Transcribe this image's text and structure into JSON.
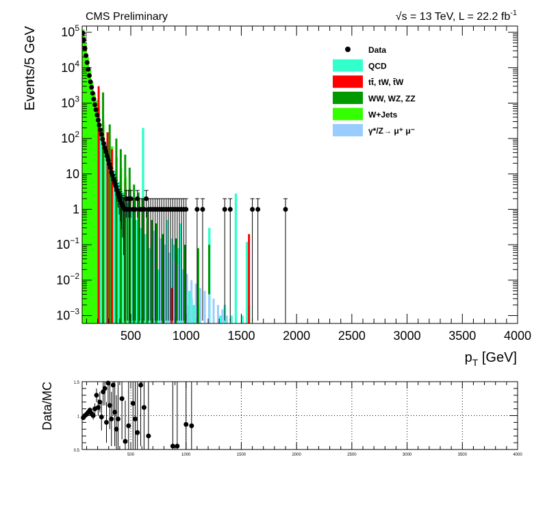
{
  "header": {
    "left": "CMS Preliminary",
    "right": "√s = 13 TeV, L = 22.2 fb",
    "right_sup": "-1"
  },
  "colors": {
    "qcd": "#33ffcc",
    "ttbar": "#ff0000",
    "diboson": "#009900",
    "wjets": "#33ff00",
    "dy": "#99ccff",
    "data": "#000000"
  },
  "chart_data": [
    {
      "type": "bar",
      "role": "main",
      "ylabel": "Events/5 GeV",
      "xlabel": "p",
      "xlabel_sub": "T",
      "xlabel_unit": " [GeV]",
      "xlim": [
        60,
        4000
      ],
      "ylim": [
        0.0006,
        150000
      ],
      "yscale": "log",
      "x_ticks": [
        "500",
        "1000",
        "1500",
        "2000",
        "2500",
        "3000",
        "3500",
        "4000"
      ],
      "y_ticks": [
        {
          "base": "10",
          "exp": "5",
          "v": 100000
        },
        {
          "base": "10",
          "exp": "4",
          "v": 10000
        },
        {
          "base": "10",
          "exp": "3",
          "v": 1000
        },
        {
          "base": "10",
          "exp": "2",
          "v": 100
        },
        {
          "base": "10",
          "exp": "",
          "v": 10
        },
        {
          "base": "1",
          "exp": "",
          "v": 1
        },
        {
          "base": "10",
          "exp": "−1",
          "v": 0.1
        },
        {
          "base": "10",
          "exp": "−2",
          "v": 0.01
        },
        {
          "base": "10",
          "exp": "−3",
          "v": 0.001
        }
      ],
      "legend": [
        {
          "key": "data",
          "label": "Data",
          "kind": "marker"
        },
        {
          "key": "qcd",
          "label": "QCD",
          "kind": "box"
        },
        {
          "key": "ttbar",
          "label": "tt̄, tW, t̄W",
          "kind": "box"
        },
        {
          "key": "diboson",
          "label": "WW, WZ, ZZ",
          "kind": "box"
        },
        {
          "key": "wjets",
          "label": "W+Jets",
          "kind": "box"
        },
        {
          "key": "dy",
          "label": "γ*/Z→ μ⁺ μ⁻",
          "kind": "box"
        }
      ],
      "legend_position": "top-right",
      "series": [
        {
          "key": "qcd",
          "points": [
            [
              60,
              80000
            ],
            [
              80,
              30000
            ],
            [
              100,
              12000
            ],
            [
              120,
              5000
            ],
            [
              140,
              2200
            ],
            [
              160,
              1000
            ],
            [
              180,
              500
            ],
            [
              200,
              250
            ],
            [
              220,
              130
            ],
            [
              240,
              80
            ],
            [
              260,
              70
            ],
            [
              280,
              40
            ],
            [
              300,
              25
            ],
            [
              320,
              15
            ],
            [
              340,
              12
            ],
            [
              360,
              9
            ],
            [
              380,
              6
            ],
            [
              400,
              4
            ],
            [
              420,
              3
            ],
            [
              440,
              2
            ],
            [
              460,
              1.5
            ],
            [
              480,
              1.2
            ],
            [
              500,
              0.9
            ],
            [
              520,
              0.7
            ],
            [
              540,
              0.5
            ],
            [
              560,
              0.4
            ],
            [
              580,
              0.3
            ],
            [
              600,
              200
            ],
            [
              620,
              0.2
            ],
            [
              640,
              0.1
            ],
            [
              660,
              0.08
            ],
            [
              680,
              0.06
            ],
            [
              700,
              0.04
            ],
            [
              720,
              0.03
            ],
            [
              740,
              0.02
            ],
            [
              760,
              0.012
            ],
            [
              780,
              0.008
            ],
            [
              800,
              0.006
            ],
            [
              820,
              0.5
            ],
            [
              840,
              0.004
            ],
            [
              860,
              0.15
            ],
            [
              880,
              0.1
            ],
            [
              900,
              0.004
            ],
            [
              920,
              0.08
            ],
            [
              940,
              0.4
            ],
            [
              960,
              0.003
            ],
            [
              980,
              0.06
            ],
            [
              1000,
              0.002
            ],
            [
              1020,
              0.005
            ],
            [
              1040,
              0.003
            ],
            [
              1060,
              0.002
            ],
            [
              1080,
              0.0015
            ],
            [
              1100,
              0.002
            ],
            [
              1200,
              0.3
            ],
            [
              1300,
              0.001
            ],
            [
              1340,
              0.002
            ],
            [
              1400,
              0.001
            ],
            [
              1440,
              2.8
            ],
            [
              1500,
              0.001
            ],
            [
              1540,
              0.12
            ],
            [
              1560,
              0.002
            ]
          ]
        },
        {
          "key": "ttbar",
          "points": [
            [
              200,
              3000
            ],
            [
              240,
              400
            ],
            [
              280,
              150
            ],
            [
              320,
              50
            ],
            [
              360,
              25
            ],
            [
              400,
              10
            ],
            [
              440,
              6
            ],
            [
              480,
              3
            ],
            [
              520,
              1.5
            ],
            [
              560,
              1
            ],
            [
              600,
              0.6
            ],
            [
              640,
              0.4
            ],
            [
              680,
              0.2
            ],
            [
              720,
              0.1
            ],
            [
              760,
              0.08
            ],
            [
              780,
              0.02
            ],
            [
              800,
              0.02
            ],
            [
              840,
              0.01
            ],
            [
              860,
              0.006
            ],
            [
              880,
              0.004
            ],
            [
              1000,
              0.002
            ],
            [
              1560,
              0.2
            ]
          ]
        },
        {
          "key": "diboson",
          "points": [
            [
              240,
              2000
            ],
            [
              300,
              250
            ],
            [
              360,
              100
            ],
            [
              400,
              50
            ],
            [
              440,
              35
            ],
            [
              480,
              15
            ],
            [
              520,
              5
            ],
            [
              560,
              3
            ],
            [
              600,
              2
            ],
            [
              640,
              1
            ],
            [
              680,
              0.5
            ],
            [
              720,
              0.4
            ],
            [
              780,
              0.2
            ],
            [
              900,
              0.15
            ],
            [
              980,
              0.1
            ],
            [
              1100,
              0.08
            ],
            [
              1200,
              0.1
            ]
          ]
        },
        {
          "key": "wjets",
          "points": [
            [
              60,
              120000
            ],
            [
              80,
              50000
            ],
            [
              100,
              20000
            ],
            [
              120,
              9000
            ],
            [
              140,
              4000
            ],
            [
              160,
              2000
            ],
            [
              180,
              1200
            ],
            [
              200,
              800
            ],
            [
              240,
              300
            ],
            [
              280,
              150
            ],
            [
              320,
              60
            ],
            [
              360,
              30
            ],
            [
              400,
              15
            ],
            [
              440,
              8
            ],
            [
              480,
              4
            ],
            [
              520,
              2
            ],
            [
              560,
              1
            ],
            [
              600,
              0.5
            ]
          ]
        },
        {
          "key": "dy",
          "points": [
            [
              700,
              0.25
            ],
            [
              760,
              0.15
            ],
            [
              800,
              0.1
            ],
            [
              840,
              0.06
            ],
            [
              880,
              0.04
            ],
            [
              920,
              0.03
            ],
            [
              960,
              0.02
            ],
            [
              1000,
              0.015
            ],
            [
              1040,
              0.01
            ],
            [
              1080,
              0.008
            ],
            [
              1120,
              0.006
            ],
            [
              1160,
              0.005
            ],
            [
              1200,
              0.004
            ],
            [
              1240,
              0.003
            ],
            [
              1280,
              0.002
            ],
            [
              1320,
              0.0015
            ],
            [
              1360,
              0.001
            ]
          ]
        }
      ],
      "data_points": [
        [
          65,
          95000
        ],
        [
          75,
          60000
        ],
        [
          85,
          35000
        ],
        [
          95,
          22000
        ],
        [
          105,
          14000
        ],
        [
          115,
          9000
        ],
        [
          125,
          6000
        ],
        [
          135,
          4000
        ],
        [
          145,
          2800
        ],
        [
          155,
          1900
        ],
        [
          165,
          1300
        ],
        [
          175,
          900
        ],
        [
          185,
          650
        ],
        [
          195,
          460
        ],
        [
          205,
          330
        ],
        [
          215,
          240
        ],
        [
          225,
          175
        ],
        [
          235,
          130
        ],
        [
          245,
          95
        ],
        [
          255,
          72
        ],
        [
          265,
          54
        ],
        [
          275,
          42
        ],
        [
          285,
          32
        ],
        [
          295,
          25
        ],
        [
          305,
          19
        ],
        [
          315,
          15
        ],
        [
          325,
          11
        ],
        [
          335,
          9
        ],
        [
          345,
          7
        ],
        [
          355,
          5.5
        ],
        [
          365,
          4.5
        ],
        [
          375,
          3.5
        ],
        [
          385,
          2.8
        ],
        [
          395,
          2.2
        ],
        [
          405,
          1.8
        ],
        [
          415,
          1.5
        ],
        [
          425,
          1.3
        ],
        [
          435,
          1.1
        ],
        [
          445,
          1
        ],
        [
          460,
          2
        ],
        [
          470,
          1
        ],
        [
          480,
          2
        ],
        [
          490,
          1
        ],
        [
          500,
          2
        ],
        [
          520,
          1
        ],
        [
          540,
          1
        ],
        [
          560,
          2
        ],
        [
          580,
          1
        ],
        [
          600,
          1
        ],
        [
          620,
          1
        ],
        [
          640,
          2
        ],
        [
          660,
          1
        ],
        [
          680,
          1
        ],
        [
          700,
          1
        ],
        [
          720,
          1
        ],
        [
          740,
          1
        ],
        [
          760,
          1
        ],
        [
          780,
          1
        ],
        [
          800,
          1
        ],
        [
          820,
          1
        ],
        [
          840,
          1
        ],
        [
          860,
          1
        ],
        [
          880,
          1
        ],
        [
          900,
          1
        ],
        [
          920,
          1
        ],
        [
          940,
          1
        ],
        [
          960,
          1
        ],
        [
          980,
          1
        ],
        [
          1000,
          1
        ],
        [
          1100,
          1
        ],
        [
          1150,
          1
        ],
        [
          1350,
          1
        ],
        [
          1400,
          1
        ],
        [
          1600,
          1
        ],
        [
          1650,
          1
        ],
        [
          1900,
          1
        ]
      ]
    },
    {
      "type": "scatter",
      "role": "ratio",
      "ylabel": "Data/MC",
      "xlim": [
        60,
        4000
      ],
      "ylim": [
        0.5,
        1.5
      ],
      "grid": true,
      "x_ticks": [
        "500",
        "1000",
        "1500",
        "2000",
        "2500",
        "3000",
        "3500",
        "4000"
      ],
      "y_ticks": [
        "1.5",
        "1",
        "0.5"
      ],
      "points": [
        {
          "x": 70,
          "y": 0.97,
          "e": 0.02
        },
        {
          "x": 85,
          "y": 1.0,
          "e": 0.02
        },
        {
          "x": 100,
          "y": 1.02,
          "e": 0.03
        },
        {
          "x": 115,
          "y": 1.05,
          "e": 0.03
        },
        {
          "x": 130,
          "y": 1.08,
          "e": 0.04
        },
        {
          "x": 145,
          "y": 1.03,
          "e": 0.05
        },
        {
          "x": 160,
          "y": 1.0,
          "e": 0.06
        },
        {
          "x": 175,
          "y": 1.1,
          "e": 0.08
        },
        {
          "x": 190,
          "y": 1.3,
          "e": 0.1
        },
        {
          "x": 205,
          "y": 1.12,
          "e": 0.12
        },
        {
          "x": 220,
          "y": 1.2,
          "e": 0.15
        },
        {
          "x": 235,
          "y": 0.98,
          "e": 0.2
        },
        {
          "x": 250,
          "y": 1.35,
          "e": 0.2
        },
        {
          "x": 265,
          "y": 1.4,
          "e": 0.25
        },
        {
          "x": 280,
          "y": 0.9,
          "e": 0.3
        },
        {
          "x": 295,
          "y": 1.48,
          "e": 0.3
        },
        {
          "x": 310,
          "y": 1.15,
          "e": 0.35
        },
        {
          "x": 325,
          "y": 0.95,
          "e": 0.4
        },
        {
          "x": 340,
          "y": 1.45,
          "e": 0.45
        },
        {
          "x": 355,
          "y": 1.05,
          "e": 0.5
        },
        {
          "x": 370,
          "y": 0.8,
          "e": 0.5
        },
        {
          "x": 385,
          "y": 0.95,
          "e": 0.55
        },
        {
          "x": 420,
          "y": 1.25,
          "e": 0.6
        },
        {
          "x": 450,
          "y": 0.62,
          "e": 0.6
        },
        {
          "x": 480,
          "y": 0.85,
          "e": 0.7
        },
        {
          "x": 520,
          "y": 1.18,
          "e": 0.7
        },
        {
          "x": 540,
          "y": 0.95,
          "e": 0.8
        },
        {
          "x": 560,
          "y": 0.75,
          "e": 0.8
        },
        {
          "x": 590,
          "y": 1.45,
          "e": 0.9
        },
        {
          "x": 620,
          "y": 1.12,
          "e": 0.9
        },
        {
          "x": 660,
          "y": 0.7,
          "e": 1.0
        },
        {
          "x": 880,
          "y": 0.55,
          "e": 1.0
        },
        {
          "x": 920,
          "y": 0.55,
          "e": 1.0
        },
        {
          "x": 1000,
          "y": 0.87,
          "e": 1.0
        },
        {
          "x": 1050,
          "y": 0.85,
          "e": 1.0
        }
      ]
    }
  ]
}
